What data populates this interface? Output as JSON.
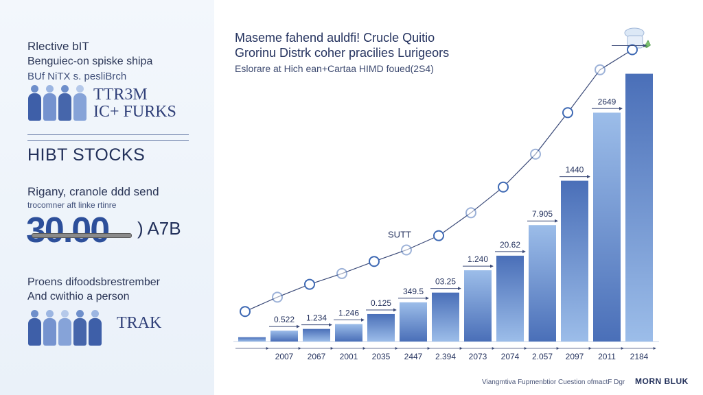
{
  "left_panel": {
    "heading": "Rlective bIT",
    "subtitle_1": "Benguiec-on spiske shipa",
    "subtitle_2": "BUf NiTX s. pesliBrch",
    "brand_line_1": "TTR3M",
    "brand_line_2": "IC+ FURKS",
    "stocks_title": "HIBT STOCKS",
    "desc_1": "Rigany, cranole ddd send",
    "desc_2": "trocomner aft linke rtinre",
    "big_number": "30.00",
    "big_number_suffix": ") A7B",
    "desc_3": "Proens difoodsbrestrember",
    "desc_4": "And cwithio a person",
    "trak_label": "TRAK"
  },
  "chart_header": {
    "title_line_1": "Maseme fahend auldfi! Crucle Quitio",
    "title_line_2": "Grorinu Distrk coher pracilies Lurigeors",
    "subtitle": "Eslorare at Hich ean+Cartaa HIMD foued(2S4)"
  },
  "chart_data": {
    "type": "bar",
    "categories": [
      "",
      "2007",
      "2067",
      "2001",
      "2035",
      "2447",
      "2.394",
      "2073",
      "2074",
      "2.057",
      "2097",
      "2011",
      "2184"
    ],
    "values": [
      0.06,
      0.152,
      0.176,
      0.244,
      0.384,
      0.548,
      0.684,
      0.996,
      1.2,
      1.628,
      2.248,
      3.2,
      3.744
    ],
    "data_labels": [
      "",
      "0.522",
      "1.234",
      "1.246",
      "0.125",
      "349.5",
      "03.25",
      "1.240",
      "20.62",
      "7.905",
      "1440",
      "2649",
      ""
    ],
    "trend_values": [
      0.42,
      0.62,
      0.8,
      0.95,
      1.12,
      1.28,
      1.48,
      1.8,
      2.16,
      2.62,
      3.2,
      3.8,
      4.08
    ],
    "annotation": "SUTT",
    "ylim": [
      0,
      4.2
    ],
    "grid": false,
    "colors": {
      "bar_dark": "#4a6fb8",
      "bar_light": "#9cbde9",
      "line": "#3b4a78",
      "marker": "#3d68b3"
    }
  },
  "footer": {
    "text": "Viangmtiva Fupmenbtior Cuestion ofmactF Dgr",
    "brand": "MORN BLUK"
  }
}
